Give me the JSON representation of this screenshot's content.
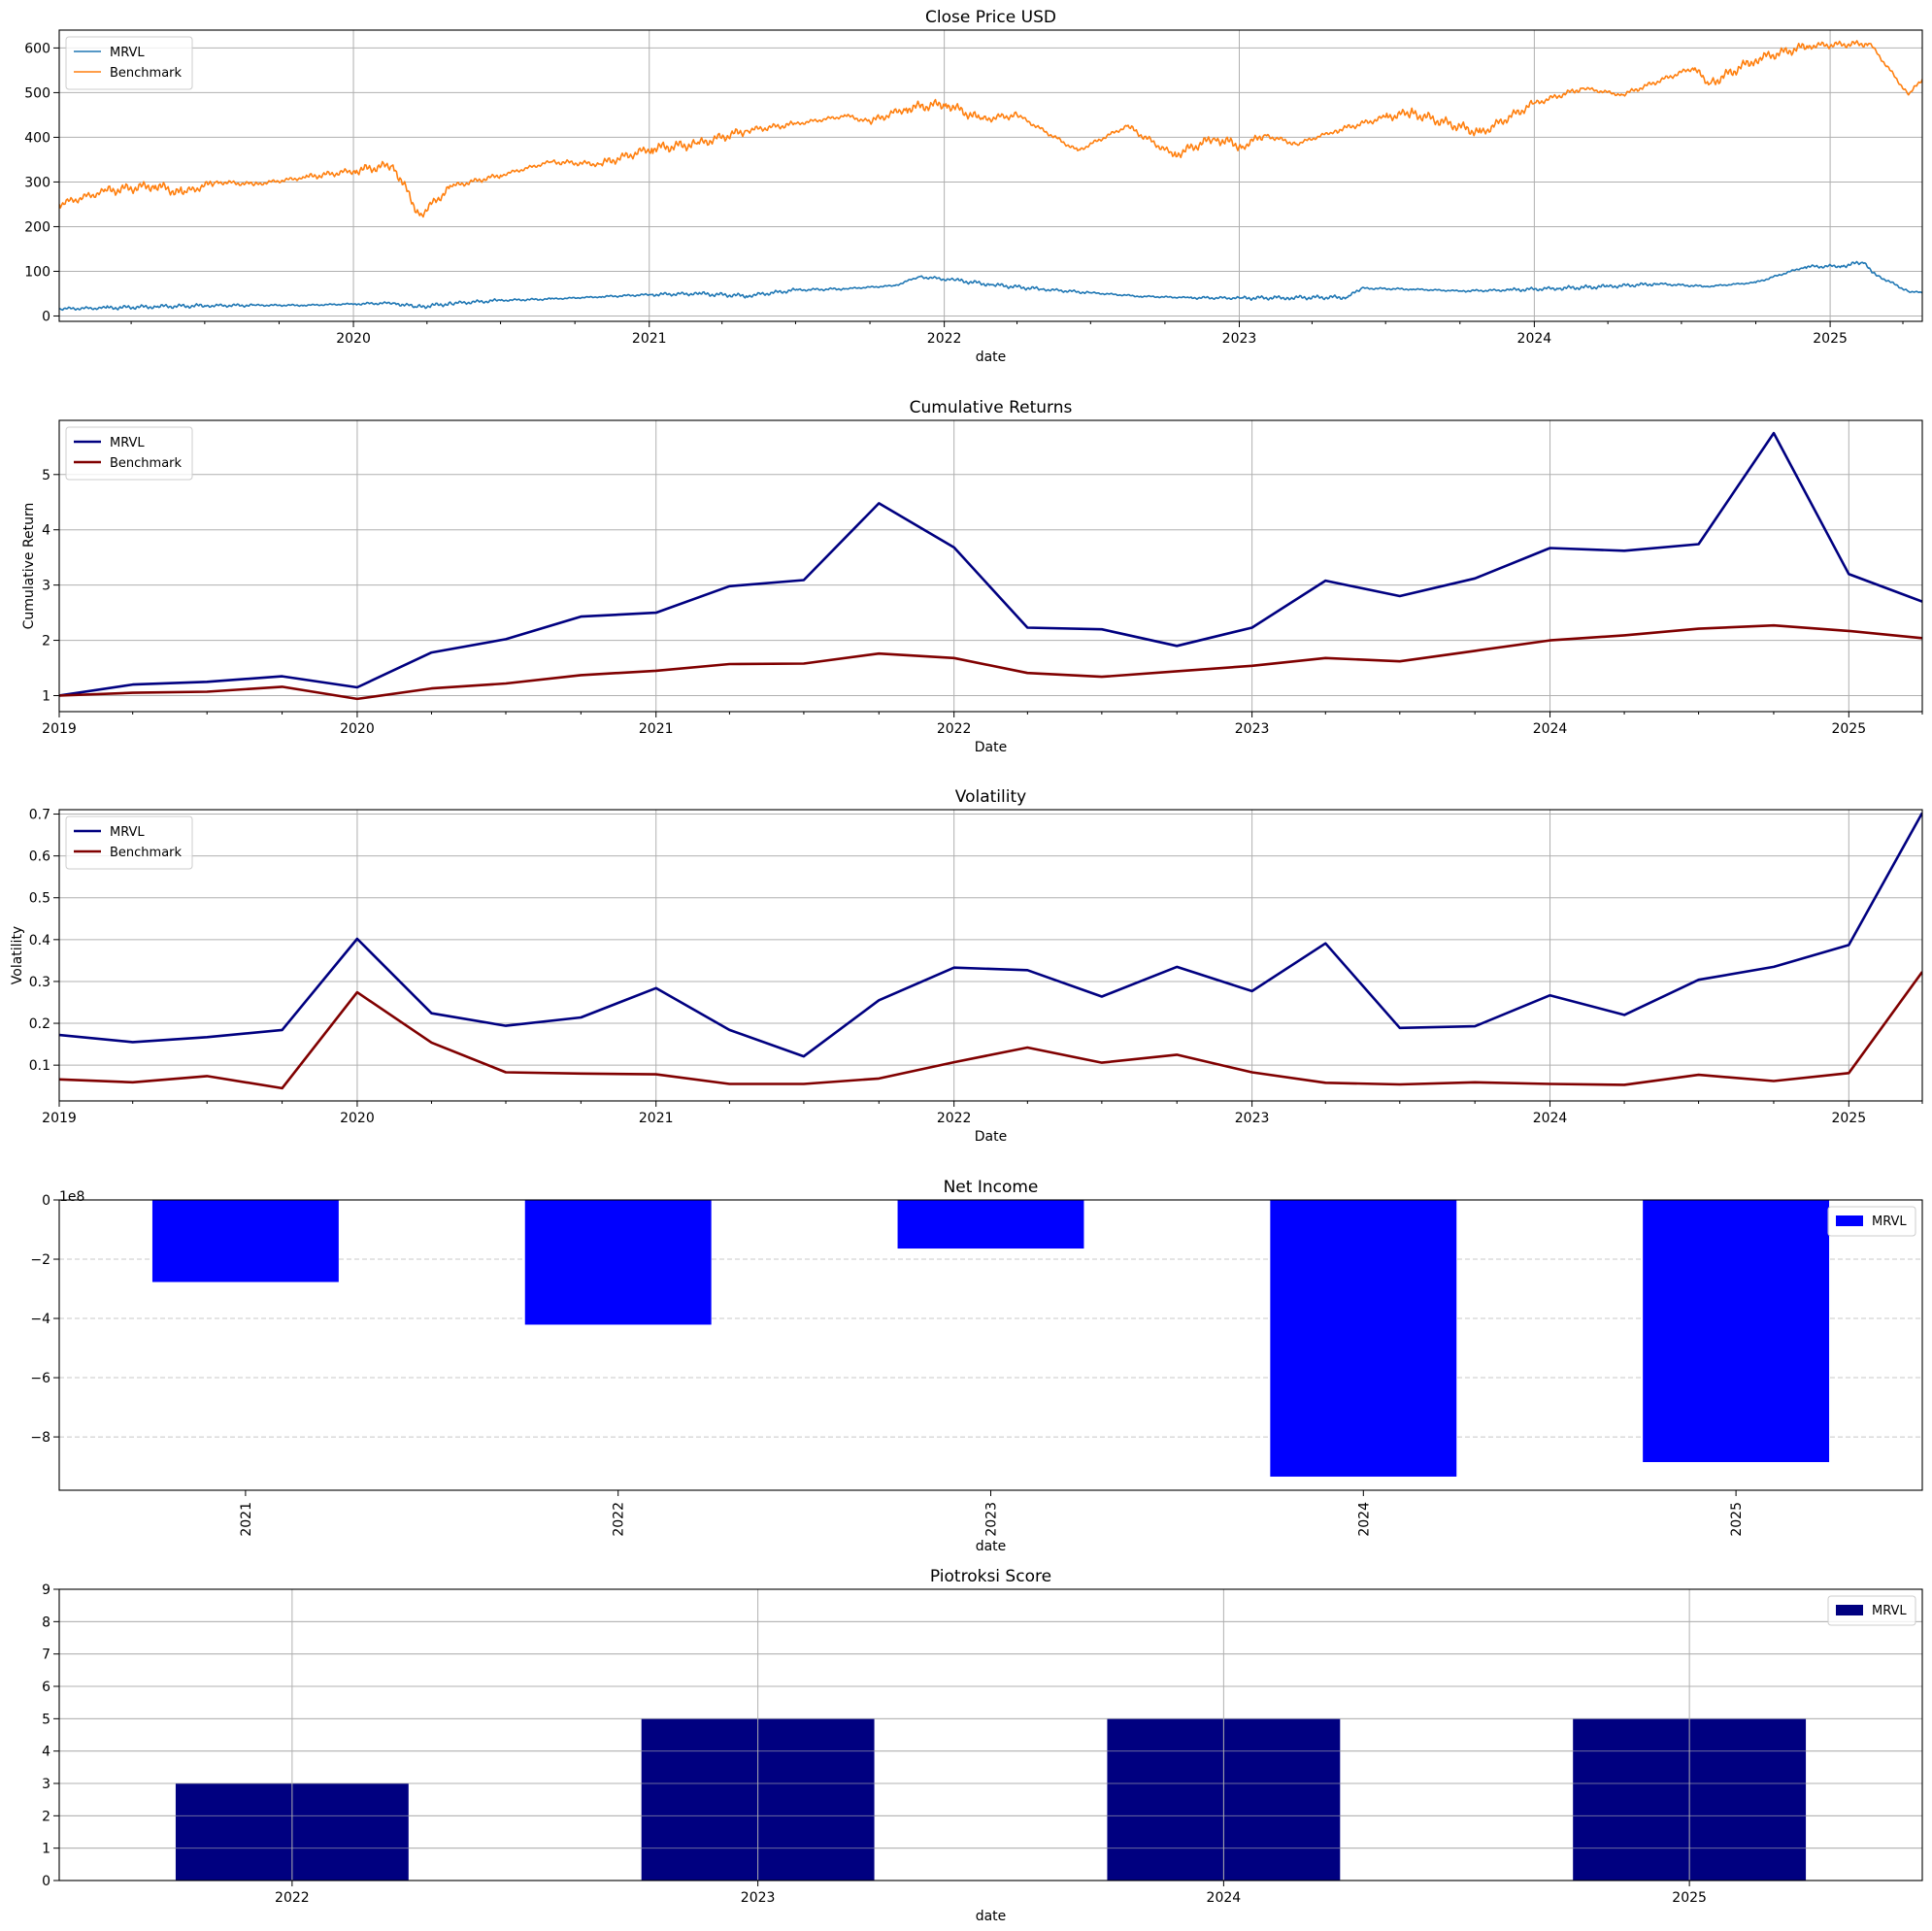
{
  "chart_data": [
    {
      "type": "line",
      "title": "Close Price USD",
      "xlabel": "date",
      "ylabel": "",
      "ylim": [
        -12,
        640
      ],
      "xlim": [
        "2019-01-02",
        "2025-04-25"
      ],
      "x_tick_labels": [
        "2020",
        "2021",
        "2022",
        "2023",
        "2024",
        "2025"
      ],
      "y_ticks": [
        0,
        100,
        200,
        300,
        400,
        500,
        600
      ],
      "y_tick_labels": [
        "0",
        "100",
        "200",
        "300",
        "400",
        "500",
        "600"
      ],
      "grid": true,
      "legend": "upper-left",
      "series": [
        {
          "name": "MRVL",
          "color": "#1f77b4",
          "x": [
            "2019-01-02",
            "2019-03-01",
            "2019-05-01",
            "2019-07-01",
            "2019-09-01",
            "2019-11-01",
            "2020-01-02",
            "2020-02-20",
            "2020-03-20",
            "2020-05-01",
            "2020-07-01",
            "2020-09-01",
            "2020-11-01",
            "2021-01-04",
            "2021-03-01",
            "2021-05-01",
            "2021-07-01",
            "2021-09-01",
            "2021-11-01",
            "2021-12-01",
            "2022-01-15",
            "2022-03-01",
            "2022-05-01",
            "2022-07-01",
            "2022-09-01",
            "2022-11-01",
            "2023-01-03",
            "2023-03-01",
            "2023-05-15",
            "2023-06-01",
            "2023-08-01",
            "2023-10-01",
            "2023-12-01",
            "2024-02-01",
            "2024-04-01",
            "2024-06-01",
            "2024-08-01",
            "2024-10-01",
            "2024-12-01",
            "2025-01-15",
            "2025-02-10",
            "2025-03-01",
            "2025-04-08",
            "2025-04-25"
          ],
          "values": [
            16,
            18,
            21,
            23,
            24,
            24,
            27,
            29,
            20,
            28,
            35,
            38,
            43,
            48,
            50,
            45,
            58,
            61,
            68,
            88,
            80,
            70,
            60,
            52,
            44,
            41,
            40,
            41,
            42,
            62,
            60,
            56,
            58,
            62,
            66,
            72,
            66,
            75,
            110,
            112,
            120,
            90,
            55,
            52
          ]
        },
        {
          "name": "Benchmark",
          "color": "#ff7f0e",
          "x": [
            "2019-01-02",
            "2019-03-01",
            "2019-05-01",
            "2019-06-03",
            "2019-07-15",
            "2019-09-01",
            "2019-11-01",
            "2020-01-02",
            "2020-02-19",
            "2020-03-23",
            "2020-05-01",
            "2020-07-01",
            "2020-09-01",
            "2020-11-01",
            "2021-01-04",
            "2021-03-01",
            "2021-05-01",
            "2021-07-01",
            "2021-09-01",
            "2021-10-01",
            "2021-11-15",
            "2022-01-03",
            "2022-02-15",
            "2022-04-01",
            "2022-06-15",
            "2022-08-15",
            "2022-10-12",
            "2022-12-01",
            "2023-01-05",
            "2023-02-01",
            "2023-03-13",
            "2023-05-01",
            "2023-07-01",
            "2023-08-01",
            "2023-10-27",
            "2023-12-31",
            "2024-03-01",
            "2024-04-19",
            "2024-07-15",
            "2024-08-05",
            "2024-10-01",
            "2024-12-06",
            "2025-02-19",
            "2025-04-08",
            "2025-04-25"
          ],
          "values": [
            250,
            280,
            292,
            275,
            300,
            295,
            310,
            325,
            338,
            225,
            290,
            315,
            345,
            340,
            375,
            385,
            415,
            430,
            448,
            435,
            465,
            475,
            440,
            450,
            370,
            425,
            360,
            398,
            380,
            405,
            385,
            415,
            445,
            455,
            410,
            475,
            510,
            495,
            555,
            520,
            575,
            605,
            610,
            495,
            530
          ]
        }
      ]
    },
    {
      "type": "line",
      "title": "Cumulative Returns",
      "xlabel": "Date",
      "ylabel": "Cumulative Return",
      "ylim": [
        0.71,
        5.98
      ],
      "xlim": [
        "2019-01-01",
        "2025-04-01"
      ],
      "x_tick_labels": [
        "2019",
        "2020",
        "2021",
        "2022",
        "2023",
        "2024",
        "2025"
      ],
      "y_ticks": [
        1,
        2,
        3,
        4,
        5
      ],
      "y_tick_labels": [
        "1",
        "2",
        "3",
        "4",
        "5"
      ],
      "grid": true,
      "legend": "upper-left",
      "x": [
        "2019-01-01",
        "2019-04-01",
        "2019-07-01",
        "2019-10-01",
        "2020-01-01",
        "2020-04-01",
        "2020-07-01",
        "2020-10-01",
        "2021-01-01",
        "2021-04-01",
        "2021-07-01",
        "2021-10-01",
        "2022-01-01",
        "2022-04-01",
        "2022-07-01",
        "2022-10-01",
        "2023-01-01",
        "2023-04-01",
        "2023-07-01",
        "2023-10-01",
        "2024-01-01",
        "2024-04-01",
        "2024-07-01",
        "2024-10-01",
        "2025-01-01",
        "2025-04-01"
      ],
      "series": [
        {
          "name": "MRVL",
          "color": "#000080",
          "values": [
            1.0,
            1.2,
            1.25,
            1.35,
            1.15,
            1.78,
            2.02,
            2.43,
            2.5,
            2.98,
            3.09,
            4.48,
            3.68,
            2.23,
            2.2,
            1.9,
            2.23,
            3.08,
            2.8,
            3.12,
            3.67,
            3.62,
            3.74,
            5.75,
            3.2,
            2.7
          ]
        },
        {
          "name": "Benchmark",
          "color": "#800000",
          "values": [
            1.0,
            1.05,
            1.07,
            1.16,
            0.94,
            1.13,
            1.22,
            1.37,
            1.45,
            1.57,
            1.58,
            1.76,
            1.68,
            1.41,
            1.34,
            1.44,
            1.54,
            1.68,
            1.62,
            1.81,
            2.0,
            2.09,
            2.21,
            2.27,
            2.17,
            2.04
          ]
        }
      ]
    },
    {
      "type": "line",
      "title": "Volatility",
      "xlabel": "Date",
      "ylabel": "Volatility",
      "ylim": [
        0.0145,
        0.7105
      ],
      "xlim": [
        "2019-01-01",
        "2025-04-01"
      ],
      "x_tick_labels": [
        "2019",
        "2020",
        "2021",
        "2022",
        "2023",
        "2024",
        "2025"
      ],
      "y_ticks": [
        0.1,
        0.2,
        0.3,
        0.4,
        0.5,
        0.6,
        0.7
      ],
      "y_tick_labels": [
        "0.1",
        "0.2",
        "0.3",
        "0.4",
        "0.5",
        "0.6",
        "0.7"
      ],
      "grid": true,
      "legend": "upper-left",
      "x": [
        "2019-01-01",
        "2019-04-01",
        "2019-07-01",
        "2019-10-01",
        "2020-01-01",
        "2020-04-01",
        "2020-07-01",
        "2020-10-01",
        "2021-01-01",
        "2021-04-01",
        "2021-07-01",
        "2021-10-01",
        "2022-01-01",
        "2022-04-01",
        "2022-07-01",
        "2022-10-01",
        "2023-01-01",
        "2023-04-01",
        "2023-07-01",
        "2023-10-01",
        "2024-01-01",
        "2024-04-01",
        "2024-07-01",
        "2024-10-01",
        "2025-01-01",
        "2025-04-01"
      ],
      "series": [
        {
          "name": "MRVL",
          "color": "#000080",
          "values": [
            0.172,
            0.155,
            0.167,
            0.184,
            0.402,
            0.224,
            0.194,
            0.214,
            0.284,
            0.184,
            0.121,
            0.255,
            0.333,
            0.327,
            0.264,
            0.335,
            0.277,
            0.391,
            0.189,
            0.193,
            0.267,
            0.22,
            0.304,
            0.335,
            0.387,
            0.703
          ]
        },
        {
          "name": "Benchmark",
          "color": "#800000",
          "values": [
            0.066,
            0.059,
            0.074,
            0.045,
            0.274,
            0.154,
            0.083,
            0.08,
            0.078,
            0.055,
            0.055,
            0.068,
            0.107,
            0.142,
            0.106,
            0.125,
            0.083,
            0.058,
            0.054,
            0.059,
            0.055,
            0.053,
            0.077,
            0.062,
            0.081,
            0.323
          ]
        }
      ]
    },
    {
      "type": "bar",
      "title": "Net Income",
      "xlabel": "date",
      "ylabel": "",
      "offset_label": "1e8",
      "ylim": [
        -9.8,
        0
      ],
      "y_ticks": [
        0,
        -2,
        -4,
        -6,
        -8
      ],
      "y_tick_labels": [
        "0",
        "−2",
        "−4",
        "−6",
        "−8"
      ],
      "grid": "horizontal-dashed",
      "legend": "upper-right",
      "categories": [
        "2021",
        "2022",
        "2023",
        "2024",
        "2025"
      ],
      "series": [
        {
          "name": "MRVL",
          "color": "#0000ff",
          "values": [
            -2.77,
            -4.21,
            -1.64,
            -9.34,
            -8.85
          ]
        }
      ]
    },
    {
      "type": "bar",
      "title": "Piotroksi Score",
      "xlabel": "date",
      "ylabel": "",
      "ylim": [
        0,
        9
      ],
      "y_ticks": [
        0,
        1,
        2,
        3,
        4,
        5,
        6,
        7,
        8,
        9
      ],
      "y_tick_labels": [
        "0",
        "1",
        "2",
        "3",
        "4",
        "5",
        "6",
        "7",
        "8",
        "9"
      ],
      "grid": true,
      "legend": "upper-right",
      "categories": [
        "2022",
        "2023",
        "2024",
        "2025"
      ],
      "series": [
        {
          "name": "MRVL",
          "color": "#000080",
          "values": [
            3,
            5,
            5,
            5
          ]
        }
      ]
    }
  ]
}
